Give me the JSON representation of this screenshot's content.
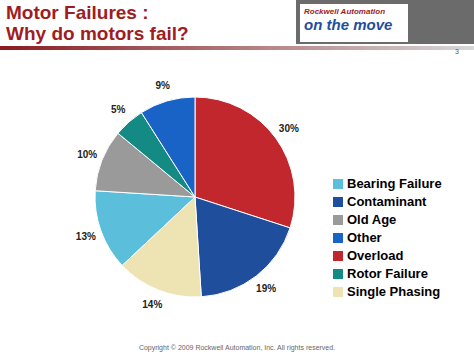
{
  "chart_data": {
    "type": "pie",
    "title": "Motor Failures :",
    "subtitle": "Why do motors fail?",
    "categories": [
      "Overload",
      "Contaminant",
      "Single Phasing",
      "Bearing Failure",
      "Old Age",
      "Rotor Failure",
      "Other"
    ],
    "values": [
      30,
      19,
      14,
      13,
      10,
      5,
      9
    ],
    "value_labels": [
      "30%",
      "19%",
      "14%",
      "13%",
      "10%",
      "5%",
      "9%"
    ],
    "colors": [
      "#c1272d",
      "#1f4e9c",
      "#ede3b3",
      "#5bbfdc",
      "#9a9a9a",
      "#138a84",
      "#1a63c6"
    ],
    "data_labels": true,
    "legend": "right",
    "annotations": [
      "Rockwell Automation",
      "on the move",
      "Copyright © 2009 Rockwell Automation, Inc. All rights reserved.",
      "3"
    ]
  }
}
